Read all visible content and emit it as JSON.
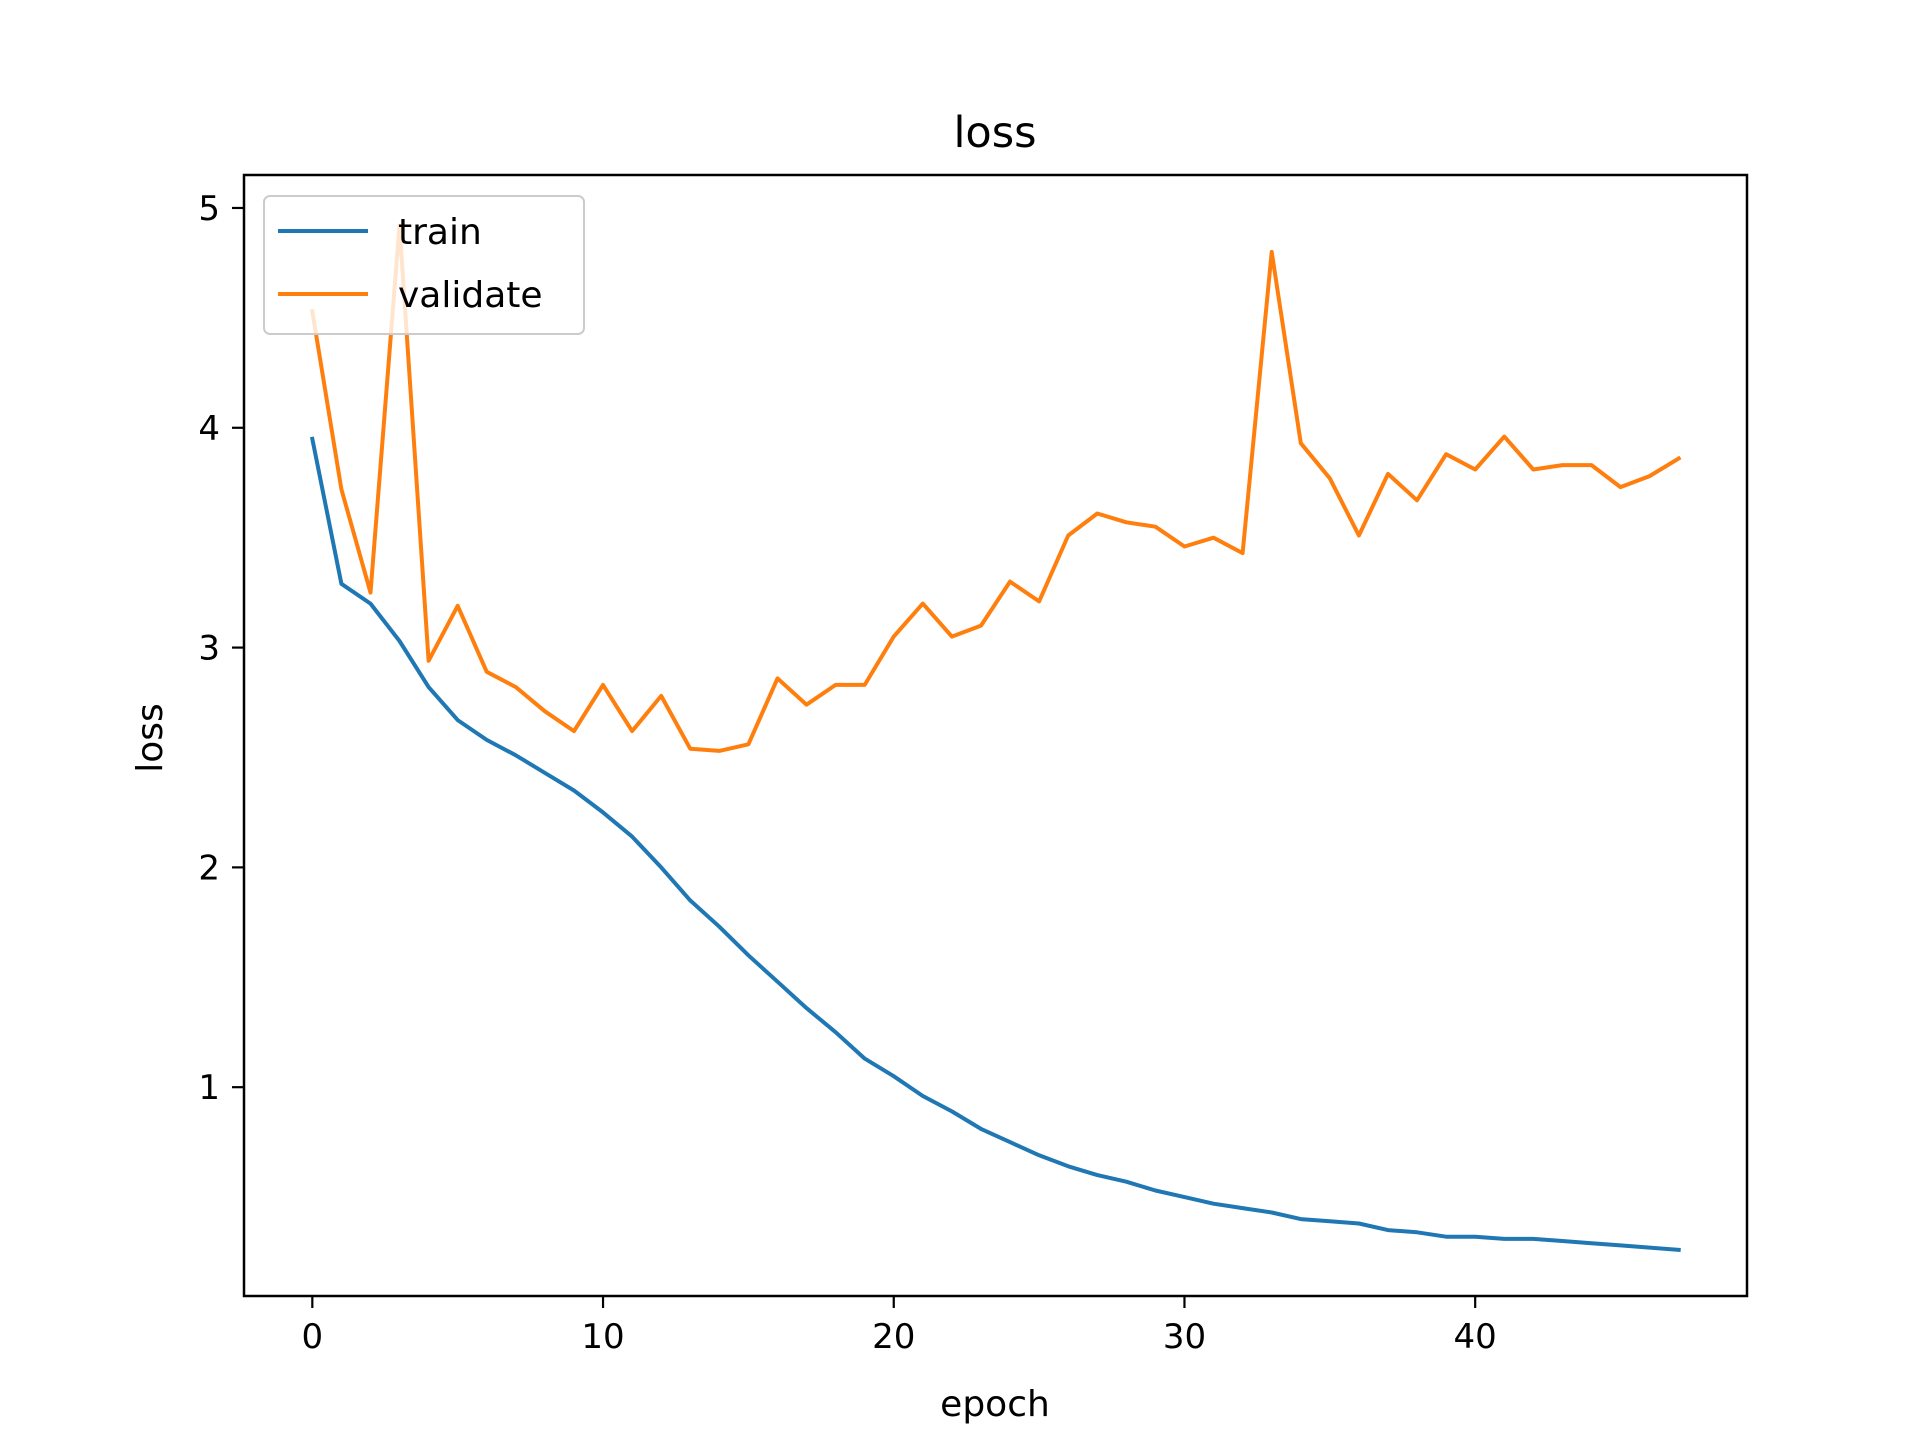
{
  "chart_data": {
    "type": "line",
    "title": "loss",
    "xlabel": "epoch",
    "ylabel": "loss",
    "xlim": [
      -2.35,
      49.35
    ],
    "ylim": [
      0.05,
      5.15
    ],
    "xticks": [
      0,
      10,
      20,
      30,
      40
    ],
    "yticks": [
      1,
      2,
      3,
      4,
      5
    ],
    "grid": false,
    "legend": "top-left",
    "x": [
      0,
      1,
      2,
      3,
      4,
      5,
      6,
      7,
      8,
      9,
      10,
      11,
      12,
      13,
      14,
      15,
      16,
      17,
      18,
      19,
      20,
      21,
      22,
      23,
      24,
      25,
      26,
      27,
      28,
      29,
      30,
      31,
      32,
      33,
      34,
      35,
      36,
      37,
      38,
      39,
      40,
      41,
      42,
      43,
      44,
      45,
      46,
      47
    ],
    "series": [
      {
        "name": "train",
        "color": "#1f77b4",
        "values": [
          3.95,
          3.29,
          3.2,
          3.03,
          2.82,
          2.67,
          2.58,
          2.51,
          2.43,
          2.35,
          2.25,
          2.14,
          2.0,
          1.85,
          1.73,
          1.6,
          1.48,
          1.36,
          1.25,
          1.13,
          1.05,
          0.96,
          0.89,
          0.81,
          0.75,
          0.69,
          0.64,
          0.6,
          0.57,
          0.53,
          0.5,
          0.47,
          0.45,
          0.43,
          0.4,
          0.39,
          0.38,
          0.35,
          0.34,
          0.32,
          0.32,
          0.31,
          0.31,
          0.3,
          0.29,
          0.28,
          0.27,
          0.26
        ]
      },
      {
        "name": "validate",
        "color": "#ff7f0e",
        "values": [
          4.53,
          3.72,
          3.25,
          4.92,
          2.94,
          3.19,
          2.89,
          2.82,
          2.71,
          2.62,
          2.83,
          2.62,
          2.78,
          2.54,
          2.53,
          2.56,
          2.86,
          2.74,
          2.83,
          2.83,
          3.05,
          3.2,
          3.05,
          3.1,
          3.3,
          3.21,
          3.51,
          3.61,
          3.57,
          3.55,
          3.46,
          3.5,
          3.43,
          4.8,
          3.93,
          3.77,
          3.51,
          3.79,
          3.67,
          3.88,
          3.81,
          3.96,
          3.81,
          3.83,
          3.83,
          3.73,
          3.78,
          3.86
        ]
      }
    ]
  }
}
